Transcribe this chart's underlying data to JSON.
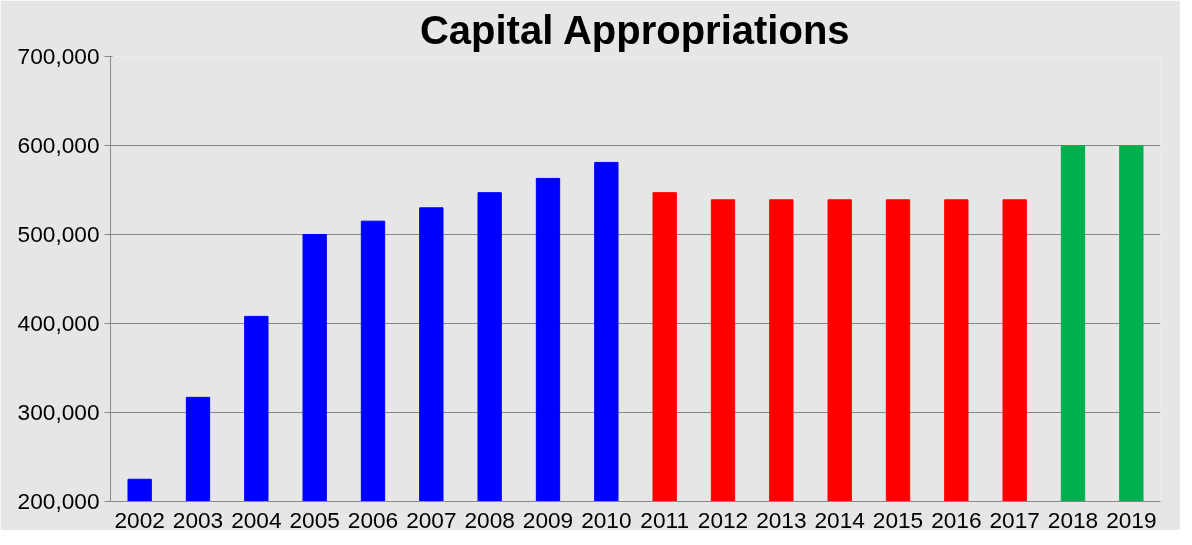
{
  "chart_data": {
    "type": "bar",
    "title": "Capital Appropriations",
    "categories": [
      "2002",
      "2003",
      "2004",
      "2005",
      "2006",
      "2007",
      "2008",
      "2009",
      "2010",
      "2011",
      "2012",
      "2013",
      "2014",
      "2015",
      "2016",
      "2017",
      "2018",
      "2019"
    ],
    "values": [
      225000,
      317000,
      408000,
      500000,
      515000,
      530000,
      547000,
      563000,
      581000,
      547000,
      539000,
      539000,
      539000,
      539000,
      539000,
      539000,
      600000,
      600000
    ],
    "colors": [
      "#0000ff",
      "#0000ff",
      "#0000ff",
      "#0000ff",
      "#0000ff",
      "#0000ff",
      "#0000ff",
      "#0000ff",
      "#0000ff",
      "#ff0000",
      "#ff0000",
      "#ff0000",
      "#ff0000",
      "#ff0000",
      "#ff0000",
      "#ff0000",
      "#00b050",
      "#00b050"
    ],
    "ylim": [
      200000,
      700000
    ],
    "yticks": [
      {
        "value": 200000,
        "label": "200,000"
      },
      {
        "value": 300000,
        "label": "300,000"
      },
      {
        "value": 400000,
        "label": "400,000"
      },
      {
        "value": 500000,
        "label": "500,000"
      },
      {
        "value": 600000,
        "label": "600,000"
      },
      {
        "value": 700000,
        "label": "700,000"
      }
    ],
    "grid": "y"
  }
}
